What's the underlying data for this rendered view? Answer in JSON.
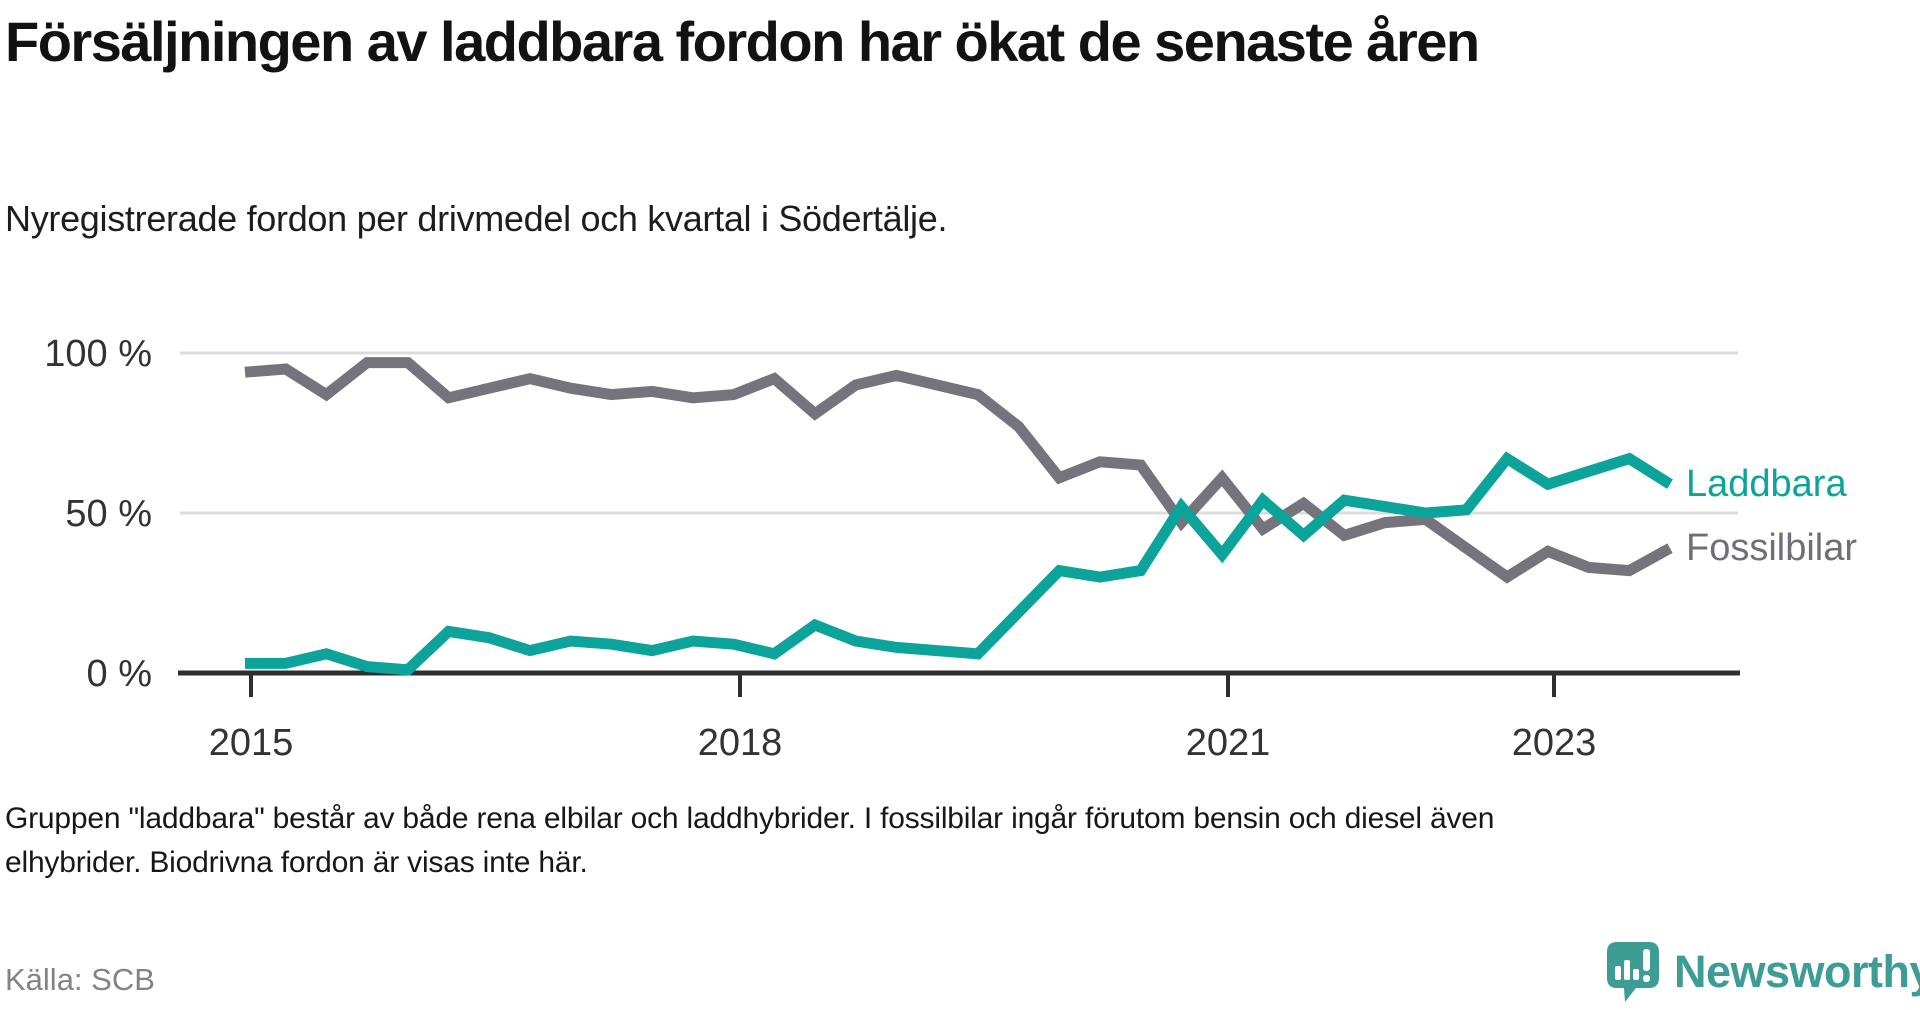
{
  "header": {
    "title": "Försäljningen av laddbara fordon har ökat de senaste åren",
    "subtitle": "Nyregistrerade fordon per drivmedel och kvartal i Södertälje."
  },
  "footer": {
    "footnote_line1": "Gruppen \"laddbara\" består av både rena elbilar och laddhybrider. I fossilbilar ingår förutom bensin och diesel även",
    "footnote_line2": "elhybrider. Biodrivna fordon är visas inte här.",
    "source": "Källa: SCB",
    "brand_name": "Newsworthy"
  },
  "chart_data": {
    "type": "line",
    "title": "Nyregistrerade fordon per drivmedel och kvartal i Södertälje",
    "x_unit": "quarter",
    "x_range": [
      "2015 Q1",
      "2023 Q4"
    ],
    "x_tick_labels": [
      "2015",
      "2018",
      "2021",
      "2023"
    ],
    "y_tick_labels": [
      "100 %",
      "50 %",
      "0 %"
    ],
    "y_ticks": [
      100,
      50,
      0
    ],
    "ylim": [
      0,
      100
    ],
    "grid": "horizontal",
    "legend_position": "right-of-line-ends",
    "x_quarters": [
      "2015 Q1",
      "2015 Q2",
      "2015 Q3",
      "2015 Q4",
      "2016 Q1",
      "2016 Q2",
      "2016 Q3",
      "2016 Q4",
      "2017 Q1",
      "2017 Q2",
      "2017 Q3",
      "2017 Q4",
      "2018 Q1",
      "2018 Q2",
      "2018 Q3",
      "2018 Q4",
      "2019 Q1",
      "2019 Q2",
      "2019 Q3",
      "2019 Q4",
      "2020 Q1",
      "2020 Q2",
      "2020 Q3",
      "2020 Q4",
      "2021 Q1",
      "2021 Q2",
      "2021 Q3",
      "2021 Q4",
      "2022 Q1",
      "2022 Q2",
      "2022 Q3",
      "2022 Q4",
      "2023 Q1",
      "2023 Q2",
      "2023 Q3",
      "2023 Q4"
    ],
    "series": [
      {
        "name": "Fossilbilar",
        "color": "#75747d",
        "label_color": "#6f6f79",
        "values": [
          94,
          95,
          87,
          97,
          97,
          86,
          89,
          92,
          89,
          87,
          88,
          86,
          87,
          92,
          81,
          90,
          93,
          90,
          87,
          77,
          61,
          66,
          65,
          47,
          61,
          45,
          53,
          43,
          47,
          48,
          39,
          30,
          38,
          33,
          32,
          39
        ]
      },
      {
        "name": "Laddbara",
        "color": "#0ba39a",
        "label_color": "#0ba39a",
        "values": [
          3,
          3,
          6,
          2,
          1,
          13,
          11,
          7,
          10,
          9,
          7,
          10,
          9,
          6,
          15,
          10,
          8,
          7,
          6,
          19,
          32,
          30,
          32,
          52,
          37,
          54,
          43,
          54,
          52,
          50,
          51,
          67,
          59,
          63,
          67,
          59
        ]
      }
    ]
  }
}
